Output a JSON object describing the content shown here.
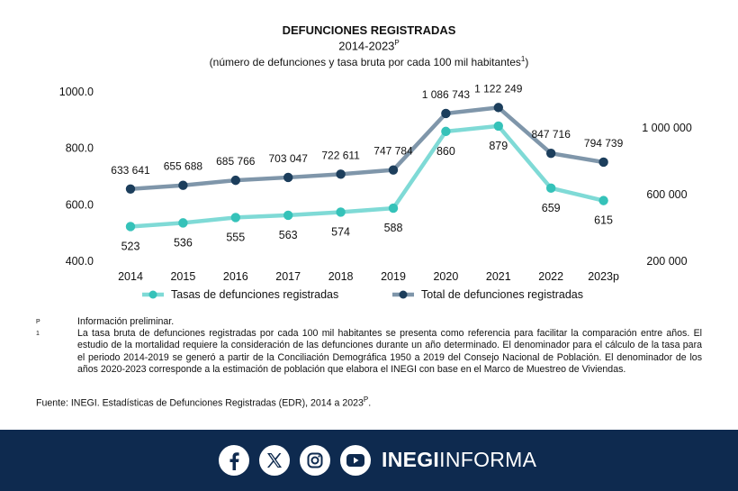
{
  "header": {
    "title": "DEFUNCIONES REGISTRADAS",
    "period": "2014-2023",
    "period_mark": "P",
    "subtitle": "(número de defunciones y tasa bruta por cada 100 mil habitantes",
    "subtitle_mark": "1",
    "subtitle_close": ")"
  },
  "chart_data": {
    "type": "line",
    "categories": [
      "2014",
      "2015",
      "2016",
      "2017",
      "2018",
      "2019",
      "2020",
      "2021",
      "2022",
      "2023p"
    ],
    "series": [
      {
        "name": "Tasas de defunciones registradas",
        "axis": "left",
        "color": "#7fdad6",
        "values": [
          523,
          536,
          555,
          563,
          574,
          588,
          860,
          879,
          659,
          615
        ],
        "labels": [
          "523",
          "536",
          "555",
          "563",
          "574",
          "588",
          "860",
          "879",
          "659",
          "615"
        ]
      },
      {
        "name": "Total de defunciones registradas",
        "axis": "right",
        "color": "#7f96aa",
        "values": [
          633641,
          655688,
          685766,
          703047,
          722611,
          747784,
          1086743,
          1122249,
          847716,
          794739
        ],
        "labels": [
          "633 641",
          "655 688",
          "685 766",
          "703 047",
          "722 611",
          "747 784",
          "1 086 743",
          "1 122 249",
          "847 716",
          "794 739"
        ]
      }
    ],
    "marker_colors": {
      "rate": "#35c2b9",
      "total": "#1c3e5c"
    },
    "left_axis": {
      "range": [
        400,
        1000
      ],
      "ticks": [
        "400.0",
        "600.0",
        "800.0",
        "1000.0"
      ],
      "tick_values": [
        400,
        600,
        800,
        1000
      ]
    },
    "right_axis": {
      "range": [
        200000,
        1000000
      ],
      "ticks": [
        "200 000",
        "600 000",
        "1 000 000"
      ],
      "tick_values": [
        200000,
        600000,
        1000000
      ]
    },
    "grid": false,
    "legend": "bottom"
  },
  "notes": [
    {
      "mark": "P",
      "text": "Información preliminar."
    },
    {
      "mark": "1",
      "text": "La tasa bruta de defunciones registradas por cada 100 mil habitantes se presenta como referencia para facilitar la comparación entre años. El estudio de la mortalidad requiere la consideración de las defunciones durante un año determinado. El denominador para el cálculo de la tasa para el periodo 2014-2019 se generó a partir de la Conciliación Demográfica 1950 a 2019 del Consejo Nacional de Población. El denominador de los años 2020-2023 corresponde a la estimación de población que elabora el INEGI con base en el Marco de Muestreo de Viviendas."
    }
  ],
  "source": {
    "text": "Fuente: INEGI. Estadísticas de Defunciones Registradas (EDR), 2014 a 2023",
    "mark": "P",
    "end": "."
  },
  "footer": {
    "brand_bold": "INEGI",
    "brand_light": "INFORMA",
    "icons": [
      "facebook-icon",
      "x-icon",
      "instagram-icon",
      "youtube-icon"
    ],
    "background": "#0e2a4f"
  }
}
